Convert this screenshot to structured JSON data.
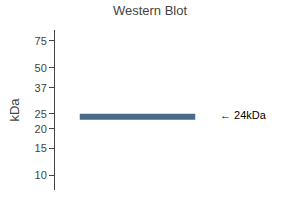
{
  "chart_data": {
    "type": "band",
    "title": "Western Blot",
    "ylabel": "kDa",
    "log": "y",
    "ylim": [
      8,
      88
    ],
    "yticks": [
      10,
      15,
      20,
      25,
      37,
      50,
      75
    ],
    "grid": false,
    "values": [
      24
    ],
    "color": "#4a6a8a",
    "data_labels": true,
    "value_labels": [
      "← 24kDa"
    ]
  }
}
